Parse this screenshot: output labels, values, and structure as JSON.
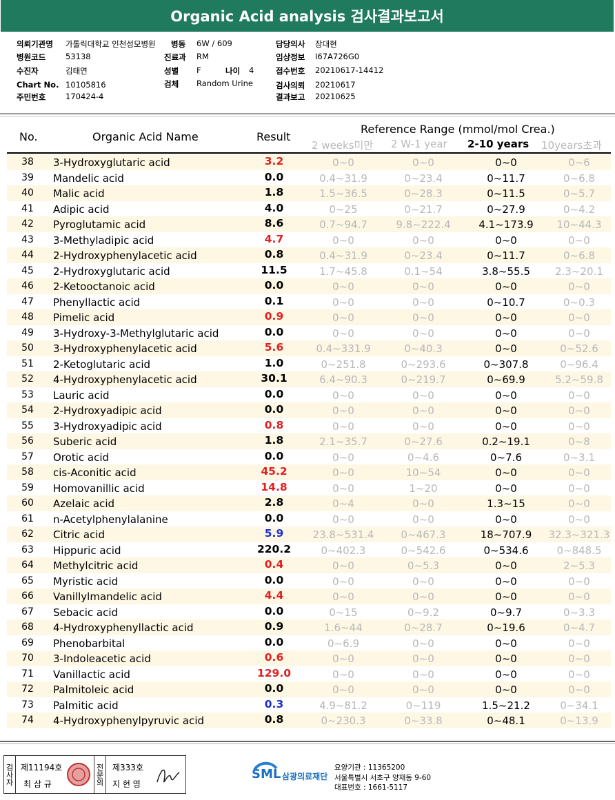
{
  "title": "Organic Acid analysis 검사결과보고서",
  "info": {
    "left": [
      {
        "label": "의뢰기관명",
        "value": "가톨릭대학교 인천성모병원"
      },
      {
        "label": "병원코드",
        "value": "53138"
      },
      {
        "label": "수진자",
        "value": "김태연"
      },
      {
        "label": "Chart No.",
        "value": "10105816"
      },
      {
        "label": "주민번호",
        "value": "170424-4"
      }
    ],
    "mid": [
      {
        "label": "병동",
        "value": "6W / 609"
      },
      {
        "label": "진료과",
        "value": "RM"
      },
      {
        "label": "성별",
        "value": "F"
      },
      {
        "label": "검체",
        "value": "Random Urine"
      }
    ],
    "age_label": "나이",
    "age_value": "4",
    "right": [
      {
        "label": "담당의사",
        "value": "장대현"
      },
      {
        "label": "임상정보",
        "value": "I67A726G0"
      },
      {
        "label": "접수번호",
        "value": "20210617-14412"
      },
      {
        "label": "검사의뢰",
        "value": "20210617"
      },
      {
        "label": "결과보고",
        "value": "20210625"
      }
    ]
  },
  "table": {
    "headers": {
      "no": "No.",
      "name": "Organic Acid Name",
      "result": "Result",
      "ref_title": "Reference Range (mmol/mol Crea.)",
      "age1": "2 weeks미만",
      "age2": "2 W-1 year",
      "age3": "2-10 years",
      "age4": "10years초과"
    },
    "rows": [
      {
        "no": "38",
        "name": "3-Hydroxyglutaric acid",
        "result": "3.2",
        "flag": "high",
        "r1": "0~0",
        "r2": "0~0",
        "r3": "0~0",
        "r4": "0~6"
      },
      {
        "no": "39",
        "name": "Mandelic acid",
        "result": "0.0",
        "flag": "normal",
        "r1": "0.4~31.9",
        "r2": "0~23.4",
        "r3": "0~11.7",
        "r4": "0~6.8"
      },
      {
        "no": "40",
        "name": "Malic acid",
        "result": "1.8",
        "flag": "normal",
        "r1": "1.5~36.5",
        "r2": "0~28.3",
        "r3": "0~11.5",
        "r4": "0~5.7"
      },
      {
        "no": "41",
        "name": "Adipic acid",
        "result": "4.0",
        "flag": "normal",
        "r1": "0~25",
        "r2": "0~21.7",
        "r3": "0~27.9",
        "r4": "0~4.2"
      },
      {
        "no": "42",
        "name": "Pyroglutamic acid",
        "result": "8.6",
        "flag": "normal",
        "r1": "0.7~94.7",
        "r2": "9.8~222.4",
        "r3": "4.1~173.9",
        "r4": "10~44.3"
      },
      {
        "no": "43",
        "name": "3-Methyladipic acid",
        "result": "4.7",
        "flag": "high",
        "r1": "0~0",
        "r2": "0~0",
        "r3": "0~0",
        "r4": "0~0"
      },
      {
        "no": "44",
        "name": "2-Hydroxyphenylacetic acid",
        "result": "0.8",
        "flag": "normal",
        "r1": "0.4~31.9",
        "r2": "0~23.4",
        "r3": "0~11.7",
        "r4": "0~6.8"
      },
      {
        "no": "45",
        "name": "2-Hydroxyglutaric acid",
        "result": "11.5",
        "flag": "normal",
        "r1": "1.7~45.8",
        "r2": "0.1~54",
        "r3": "3.8~55.5",
        "r4": "2.3~20.1"
      },
      {
        "no": "46",
        "name": "2-Ketooctanoic acid",
        "result": "0.0",
        "flag": "normal",
        "r1": "0~0",
        "r2": "0~0",
        "r3": "0~0",
        "r4": "0~0"
      },
      {
        "no": "47",
        "name": "Phenyllactic acid",
        "result": "0.1",
        "flag": "normal",
        "r1": "0~0",
        "r2": "0~0",
        "r3": "0~10.7",
        "r4": "0~0.3"
      },
      {
        "no": "48",
        "name": "Pimelic acid",
        "result": "0.9",
        "flag": "high",
        "r1": "0~0",
        "r2": "0~0",
        "r3": "0~0",
        "r4": "0~0"
      },
      {
        "no": "49",
        "name": "3-Hydroxy-3-Methylglutaric acid",
        "result": "0.0",
        "flag": "normal",
        "r1": "0~0",
        "r2": "0~0",
        "r3": "0~0",
        "r4": "0~0"
      },
      {
        "no": "50",
        "name": "3-Hydroxyphenylacetic acid",
        "result": "5.6",
        "flag": "high",
        "r1": "0.4~331.9",
        "r2": "0~40.3",
        "r3": "0~0",
        "r4": "0~52.6"
      },
      {
        "no": "51",
        "name": "2-Ketoglutaric acid",
        "result": "1.0",
        "flag": "normal",
        "r1": "0~251.8",
        "r2": "0~293.6",
        "r3": "0~307.8",
        "r4": "0~96.4"
      },
      {
        "no": "52",
        "name": "4-Hydroxyphenylacetic acid",
        "result": "30.1",
        "flag": "normal",
        "r1": "6.4~90.3",
        "r2": "0~219.7",
        "r3": "0~69.9",
        "r4": "5.2~59.8"
      },
      {
        "no": "53",
        "name": "Lauric acid",
        "result": "0.0",
        "flag": "normal",
        "r1": "0~0",
        "r2": "0~0",
        "r3": "0~0",
        "r4": "0~0"
      },
      {
        "no": "54",
        "name": "2-Hydroxyadipic acid",
        "result": "0.0",
        "flag": "normal",
        "r1": "0~0",
        "r2": "0~0",
        "r3": "0~0",
        "r4": "0~0"
      },
      {
        "no": "55",
        "name": "3-Hydroxyadipic acid",
        "result": "0.8",
        "flag": "high",
        "r1": "0~0",
        "r2": "0~0",
        "r3": "0~0",
        "r4": "0~0"
      },
      {
        "no": "56",
        "name": "Suberic acid",
        "result": "1.8",
        "flag": "normal",
        "r1": "2.1~35.7",
        "r2": "0~27.6",
        "r3": "0.2~19.1",
        "r4": "0~8"
      },
      {
        "no": "57",
        "name": "Orotic acid",
        "result": "0.0",
        "flag": "normal",
        "r1": "0~0",
        "r2": "0~4.6",
        "r3": "0~7.6",
        "r4": "0~3.1"
      },
      {
        "no": "58",
        "name": "cis-Aconitic acid",
        "result": "45.2",
        "flag": "high",
        "r1": "0~0",
        "r2": "10~54",
        "r3": "0~0",
        "r4": "0~0"
      },
      {
        "no": "59",
        "name": "Homovanillic acid",
        "result": "14.8",
        "flag": "high",
        "r1": "0~0",
        "r2": "1~20",
        "r3": "0~0",
        "r4": "0~0"
      },
      {
        "no": "60",
        "name": "Azelaic acid",
        "result": "2.8",
        "flag": "normal",
        "r1": "0~4",
        "r2": "0~0",
        "r3": "1.3~15",
        "r4": "0~0"
      },
      {
        "no": "61",
        "name": "n-Acetylphenylalanine",
        "result": "0.0",
        "flag": "normal",
        "r1": "0~0",
        "r2": "0~0",
        "r3": "0~0",
        "r4": "0~0"
      },
      {
        "no": "62",
        "name": "Citric acid",
        "result": "5.9",
        "flag": "low",
        "r1": "23.8~531.4",
        "r2": "0~467.3",
        "r3": "18~707.9",
        "r4": "32.3~321.3"
      },
      {
        "no": "63",
        "name": "Hippuric acid",
        "result": "220.2",
        "flag": "normal",
        "r1": "0~402.3",
        "r2": "0~542.6",
        "r3": "0~534.6",
        "r4": "0~848.5"
      },
      {
        "no": "64",
        "name": "Methylcitric acid",
        "result": "0.4",
        "flag": "high",
        "r1": "0~0",
        "r2": "0~5.3",
        "r3": "0~0",
        "r4": "2~5.3"
      },
      {
        "no": "65",
        "name": "Myristic acid",
        "result": "0.0",
        "flag": "normal",
        "r1": "0~0",
        "r2": "0~0",
        "r3": "0~0",
        "r4": "0~0"
      },
      {
        "no": "66",
        "name": "Vanillylmandelic acid",
        "result": "4.4",
        "flag": "high",
        "r1": "0~0",
        "r2": "0~0",
        "r3": "0~0",
        "r4": "0~0"
      },
      {
        "no": "67",
        "name": "Sebacic acid",
        "result": "0.0",
        "flag": "normal",
        "r1": "0~15",
        "r2": "0~9.2",
        "r3": "0~9.7",
        "r4": "0~3.3"
      },
      {
        "no": "68",
        "name": "4-Hydroxyphenyllactic acid",
        "result": "0.9",
        "flag": "normal",
        "r1": "1.6~44",
        "r2": "0~28.7",
        "r3": "0~19.6",
        "r4": "0~4.7"
      },
      {
        "no": "69",
        "name": "Phenobarbital",
        "result": "0.0",
        "flag": "normal",
        "r1": "0~6.9",
        "r2": "0~0",
        "r3": "0~0",
        "r4": "0~0"
      },
      {
        "no": "70",
        "name": "3-Indoleacetic acid",
        "result": "0.6",
        "flag": "high",
        "r1": "0~0",
        "r2": "0~0",
        "r3": "0~0",
        "r4": "0~0"
      },
      {
        "no": "71",
        "name": "Vanillactic acid",
        "result": "129.0",
        "flag": "high",
        "r1": "0~0",
        "r2": "0~0",
        "r3": "0~0",
        "r4": "0~0"
      },
      {
        "no": "72",
        "name": "Palmitoleic acid",
        "result": "0.0",
        "flag": "normal",
        "r1": "0~0",
        "r2": "0~0",
        "r3": "0~0",
        "r4": "0~0"
      },
      {
        "no": "73",
        "name": "Palmitic acid",
        "result": "0.3",
        "flag": "low",
        "r1": "4.9~81.2",
        "r2": "0~119",
        "r3": "1.5~21.2",
        "r4": "0~34.1"
      },
      {
        "no": "74",
        "name": "4-Hydroxyphenylpyruvic acid",
        "result": "0.8",
        "flag": "normal",
        "r1": "0~230.3",
        "r2": "0~33.8",
        "r3": "0~48.1",
        "r4": "0~13.9"
      }
    ]
  },
  "colors": {
    "header_bg": "#1f7a5e",
    "high": "#e02020",
    "low": "#1a2fd0",
    "shade": "#fdf7e4"
  },
  "footer": {
    "box1_side": "검사자",
    "box1_license": "제11194호",
    "box1_name": "최 삼 규",
    "box2_side": "전문의",
    "box2_license": "제333호",
    "box2_name": "지 현 영",
    "logo_text": "SML",
    "org_name": "삼광의료재단",
    "lines": [
      "요양기관 : 11365200",
      "서울특별시 서초구 양재동 9-60",
      "대표번호 : 1661-5117"
    ]
  }
}
